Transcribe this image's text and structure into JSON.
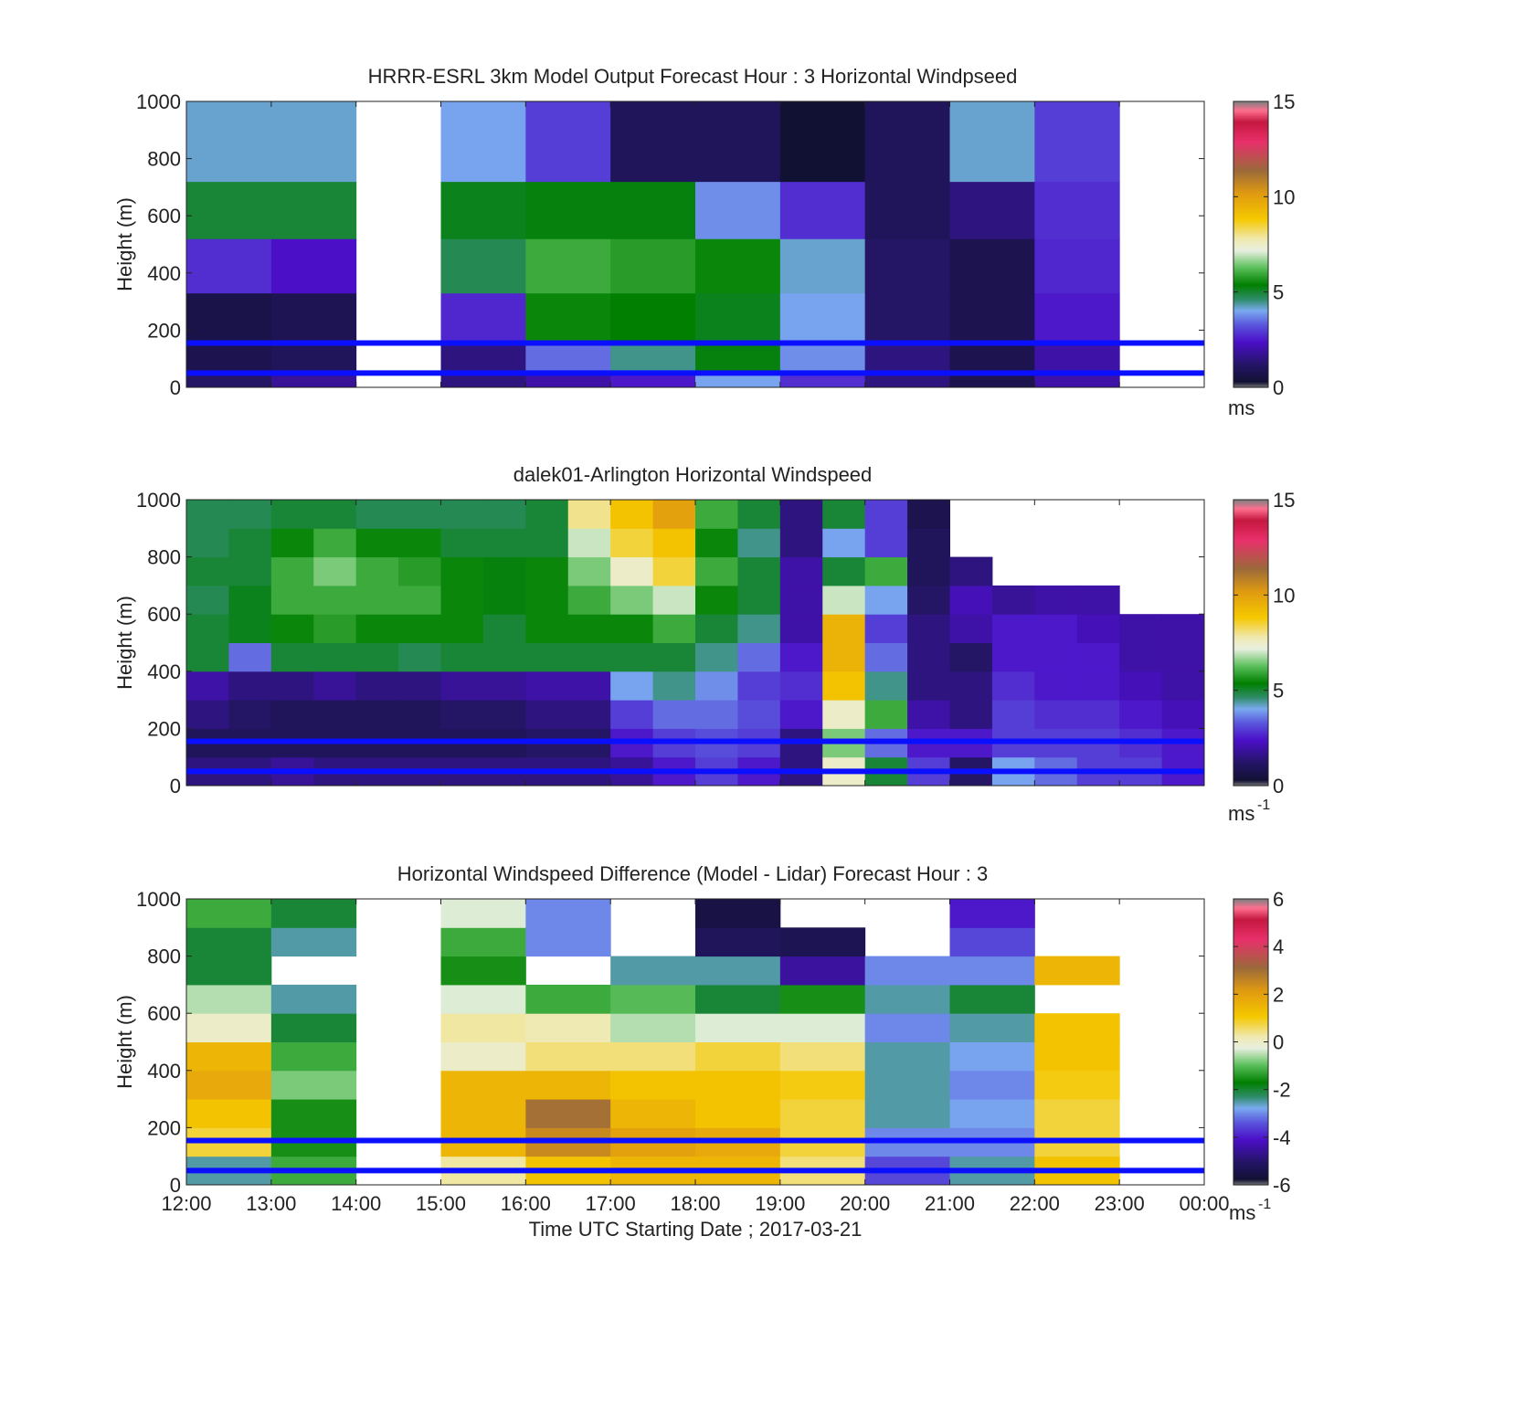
{
  "chart_data": [
    {
      "type": "heatmap",
      "title": "HRRR-ESRL 3km Model Output   Forecast Hour : 3 Horizontal Windpseed",
      "ylabel": "Height (m)",
      "xlim": [
        "12:00",
        "00:00"
      ],
      "ylim": [
        0,
        1000
      ],
      "yticks": [
        "0",
        "200",
        "400",
        "600",
        "800",
        "1000"
      ],
      "colorbar": {
        "min": 0,
        "max": 15,
        "ticks": [
          "0",
          "5",
          "10",
          "15"
        ],
        "unit": "ms",
        "unit_sup": ""
      },
      "reference_lines_m": [
        50,
        155
      ],
      "height_levels_m": [
        0,
        50,
        155,
        330,
        520,
        720,
        1000
      ],
      "hours": [
        "12:00",
        "13:00",
        "14:00",
        "15:00",
        "16:00",
        "17:00",
        "18:00",
        "19:00",
        "20:00",
        "21:00",
        "22:00"
      ],
      "values": [
        [
          1.2,
          0.8,
          0.7,
          2.8,
          5.0,
          4.2
        ],
        [
          1.8,
          1.0,
          0.9,
          2.4,
          5.0,
          4.2
        ],
        [
          null,
          null,
          null,
          null,
          null,
          null
        ],
        [
          1.5,
          1.5,
          2.7,
          4.8,
          5.2,
          4.0
        ],
        [
          2.0,
          3.5,
          5.5,
          6.0,
          5.3,
          3.0
        ],
        [
          2.5,
          4.5,
          5.4,
          5.8,
          5.3,
          1.0
        ],
        [
          4.0,
          5.3,
          5.2,
          5.5,
          3.8,
          1.0
        ],
        [
          2.8,
          3.8,
          4.0,
          4.2,
          2.8,
          0.3
        ],
        [
          1.5,
          1.5,
          1.2,
          1.2,
          1.0,
          1.0
        ],
        [
          0.8,
          0.8,
          0.8,
          0.8,
          1.5,
          4.2
        ],
        [
          2.0,
          2.0,
          2.5,
          2.7,
          2.8,
          3.0
        ]
      ]
    },
    {
      "type": "heatmap",
      "title": "dalek01-Arlington  Horizontal Windspeed",
      "ylabel": "Height (m)",
      "xlim": [
        "12:00",
        "00:00"
      ],
      "ylim": [
        0,
        1000
      ],
      "yticks": [
        "0",
        "200",
        "400",
        "600",
        "800",
        "1000"
      ],
      "colorbar": {
        "min": 0,
        "max": 15,
        "ticks": [
          "0",
          "5",
          "10",
          "15"
        ],
        "unit": "ms",
        "unit_sup": "-1"
      },
      "reference_lines_m": [
        50,
        155
      ],
      "height_levels_m": [
        0,
        100,
        200,
        300,
        400,
        500,
        600,
        700,
        800,
        900,
        1000
      ],
      "columns_per_hour": 2,
      "values": [
        [
          1.5,
          1.0,
          1.5,
          2.0,
          5.0,
          5.0,
          4.8,
          5.0,
          4.8,
          4.8
        ],
        [
          1.5,
          1.0,
          1.2,
          1.5,
          3.5,
          5.2,
          5.2,
          5.0,
          5.0,
          4.8
        ],
        [
          1.8,
          1.0,
          1.0,
          1.5,
          5.0,
          5.5,
          6.0,
          6.0,
          5.5,
          5.0
        ],
        [
          1.5,
          1.0,
          1.0,
          1.8,
          5.0,
          5.8,
          6.0,
          6.5,
          6.0,
          5.0
        ],
        [
          1.5,
          1.0,
          1.0,
          1.5,
          5.0,
          5.5,
          6.0,
          6.0,
          5.5,
          4.8
        ],
        [
          1.5,
          1.0,
          1.0,
          1.5,
          4.8,
          5.5,
          6.0,
          5.8,
          5.5,
          4.8
        ],
        [
          1.5,
          1.0,
          1.2,
          1.8,
          5.0,
          5.5,
          5.5,
          5.5,
          5.0,
          4.8
        ],
        [
          1.5,
          1.0,
          1.2,
          1.8,
          5.0,
          5.0,
          5.3,
          5.3,
          5.0,
          4.8
        ],
        [
          1.5,
          1.2,
          1.5,
          2.0,
          5.0,
          5.5,
          5.5,
          5.5,
          5.0,
          5.0
        ],
        [
          1.5,
          1.2,
          1.5,
          2.0,
          5.0,
          5.5,
          6.0,
          6.5,
          7.0,
          8.0
        ],
        [
          1.8,
          2.5,
          3.0,
          4.0,
          5.0,
          5.5,
          6.5,
          7.5,
          8.5,
          9.0
        ],
        [
          2.5,
          3.0,
          3.5,
          4.5,
          5.0,
          6.0,
          7.0,
          8.5,
          9.0,
          10.0
        ],
        [
          3.0,
          3.2,
          3.5,
          3.8,
          4.5,
          5.0,
          5.5,
          6.0,
          5.5,
          6.0
        ],
        [
          2.5,
          3.0,
          3.2,
          3.0,
          3.5,
          4.5,
          5.0,
          5.0,
          4.5,
          5.0
        ],
        [
          1.5,
          1.5,
          2.5,
          2.8,
          2.5,
          2.0,
          2.0,
          2.0,
          1.5,
          1.5
        ],
        [
          7.5,
          6.5,
          7.5,
          9.0,
          9.5,
          9.5,
          7.0,
          5.0,
          4.0,
          5.0
        ],
        [
          5.0,
          3.5,
          6.0,
          4.5,
          3.5,
          3.0,
          4.0,
          6.0,
          3.0,
          3.0
        ],
        [
          3.0,
          2.5,
          2.0,
          1.5,
          1.5,
          1.5,
          1.2,
          1.0,
          1.0,
          0.8
        ],
        [
          1.2,
          2.5,
          1.5,
          1.5,
          1.2,
          2.0,
          2.2,
          1.5,
          null,
          null
        ],
        [
          4.0,
          3.0,
          3.0,
          2.8,
          2.5,
          2.5,
          1.8,
          null,
          null,
          null
        ],
        [
          3.5,
          3.0,
          2.8,
          2.5,
          2.5,
          2.5,
          2.0,
          null,
          null,
          null
        ],
        [
          3.0,
          3.0,
          2.8,
          2.5,
          2.5,
          2.2,
          2.0,
          null,
          null,
          null
        ],
        [
          3.0,
          2.8,
          2.5,
          2.2,
          2.0,
          2.0,
          null,
          null,
          null,
          null
        ],
        [
          2.5,
          2.5,
          2.2,
          2.0,
          2.0,
          2.0,
          null,
          null,
          null,
          null
        ]
      ]
    },
    {
      "type": "heatmap",
      "title": "Horizontal Windspeed Difference (Model - Lidar) Forecast Hour : 3",
      "xlabel": "Time UTC  Starting Date ; 2017-03-21",
      "ylabel": "Height (m)",
      "xlim": [
        "12:00",
        "00:00"
      ],
      "ylim": [
        0,
        1000
      ],
      "xticks": [
        "12:00",
        "13:00",
        "14:00",
        "15:00",
        "16:00",
        "17:00",
        "18:00",
        "19:00",
        "20:00",
        "21:00",
        "22:00",
        "23:00",
        "00:00"
      ],
      "yticks": [
        "0",
        "200",
        "400",
        "600",
        "800",
        "1000"
      ],
      "colorbar": {
        "min": -6,
        "max": 6,
        "ticks": [
          "-6",
          "-4",
          "-2",
          "0",
          "2",
          "4",
          "6"
        ],
        "unit": "ms",
        "unit_sup": "-1"
      },
      "reference_lines_m": [
        50,
        155
      ],
      "height_levels_m": [
        0,
        100,
        200,
        300,
        400,
        500,
        600,
        700,
        800,
        900,
        1000
      ],
      "hours": [
        "12:00",
        "13:00",
        "14:00",
        "15:00",
        "16:00",
        "17:00",
        "18:00",
        "19:00",
        "20:00",
        "21:00",
        "22:00"
      ],
      "values": [
        [
          -2.5,
          0.8,
          1.2,
          1.8,
          1.5,
          0.0,
          -0.5,
          -2.0,
          -2.0,
          -1.2
        ],
        [
          -1.2,
          -1.5,
          -1.5,
          -0.8,
          -1.2,
          -2.0,
          -2.5,
          null,
          -2.5,
          -2.0
        ],
        [
          null,
          null,
          null,
          null,
          null,
          null,
          null,
          null,
          null,
          null
        ],
        [
          0.3,
          1.5,
          1.5,
          1.5,
          0.0,
          0.3,
          -0.3,
          -1.5,
          -1.2,
          -0.3
        ],
        [
          1.2,
          2.5,
          3.0,
          1.5,
          0.5,
          0.2,
          -1.2,
          null,
          -3.0,
          -3.0
        ],
        [
          1.5,
          2.0,
          1.5,
          1.2,
          0.5,
          -0.5,
          -1.0,
          -2.5,
          null,
          null
        ],
        [
          1.5,
          1.8,
          1.2,
          1.2,
          0.8,
          -0.3,
          -2.0,
          -2.5,
          -5.2,
          -5.5
        ],
        [
          0.5,
          0.8,
          0.8,
          1.0,
          0.5,
          -0.3,
          -1.5,
          -4.5,
          -5.3,
          null
        ],
        [
          -3.5,
          -3.0,
          -2.5,
          -2.5,
          -2.5,
          -3.0,
          -2.5,
          -3.0,
          null,
          null
        ],
        [
          -2.5,
          -3.0,
          -2.8,
          -3.0,
          -2.8,
          -2.5,
          -2.0,
          -3.0,
          -3.5,
          -4.0
        ],
        [
          1.2,
          0.8,
          0.8,
          1.0,
          1.2,
          1.2,
          null,
          1.5,
          null,
          null
        ]
      ]
    }
  ]
}
